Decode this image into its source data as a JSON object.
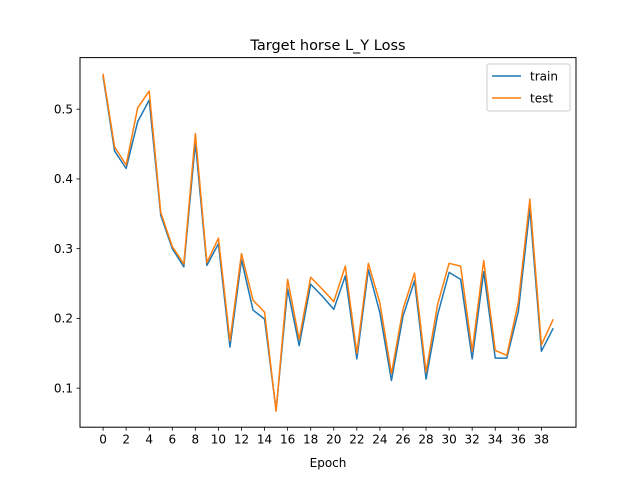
{
  "chart_data": {
    "type": "line",
    "title": "Target horse L_Y Loss",
    "xlabel": "Epoch",
    "ylabel": "",
    "xlim": [
      -2,
      41
    ],
    "ylim": [
      0.044,
      0.574
    ],
    "xticks": [
      0,
      2,
      4,
      6,
      8,
      10,
      12,
      14,
      16,
      18,
      20,
      22,
      24,
      26,
      28,
      30,
      32,
      34,
      36,
      38
    ],
    "yticks": [
      0.1,
      0.2,
      0.3,
      0.4,
      0.5
    ],
    "ytick_labels": [
      "0.1",
      "0.2",
      "0.3",
      "0.4",
      "0.5"
    ],
    "grid": false,
    "legend": {
      "placement": "top-right"
    },
    "x": [
      0,
      1,
      2,
      3,
      4,
      5,
      6,
      7,
      8,
      9,
      10,
      11,
      12,
      13,
      14,
      15,
      16,
      17,
      18,
      19,
      20,
      21,
      22,
      23,
      24,
      25,
      26,
      27,
      28,
      29,
      30,
      31,
      32,
      33,
      34,
      35,
      36,
      37,
      38,
      39
    ],
    "series": [
      {
        "name": "train",
        "color": "#1f77b4",
        "values": [
          0.547,
          0.44,
          0.415,
          0.482,
          0.513,
          0.348,
          0.3,
          0.274,
          0.452,
          0.276,
          0.307,
          0.159,
          0.284,
          0.212,
          0.199,
          0.068,
          0.242,
          0.161,
          0.249,
          0.232,
          0.213,
          0.261,
          0.142,
          0.27,
          0.208,
          0.111,
          0.203,
          0.254,
          0.113,
          0.205,
          0.266,
          0.256,
          0.142,
          0.267,
          0.143,
          0.143,
          0.21,
          0.357,
          0.153,
          0.185
        ]
      },
      {
        "name": "test",
        "color": "#ff7f0e",
        "values": [
          0.55,
          0.446,
          0.42,
          0.502,
          0.526,
          0.352,
          0.303,
          0.278,
          0.465,
          0.28,
          0.315,
          0.168,
          0.293,
          0.226,
          0.209,
          0.067,
          0.256,
          0.17,
          0.259,
          0.242,
          0.224,
          0.275,
          0.15,
          0.279,
          0.222,
          0.121,
          0.213,
          0.265,
          0.123,
          0.22,
          0.279,
          0.275,
          0.153,
          0.283,
          0.154,
          0.147,
          0.223,
          0.371,
          0.162,
          0.198
        ]
      }
    ]
  }
}
